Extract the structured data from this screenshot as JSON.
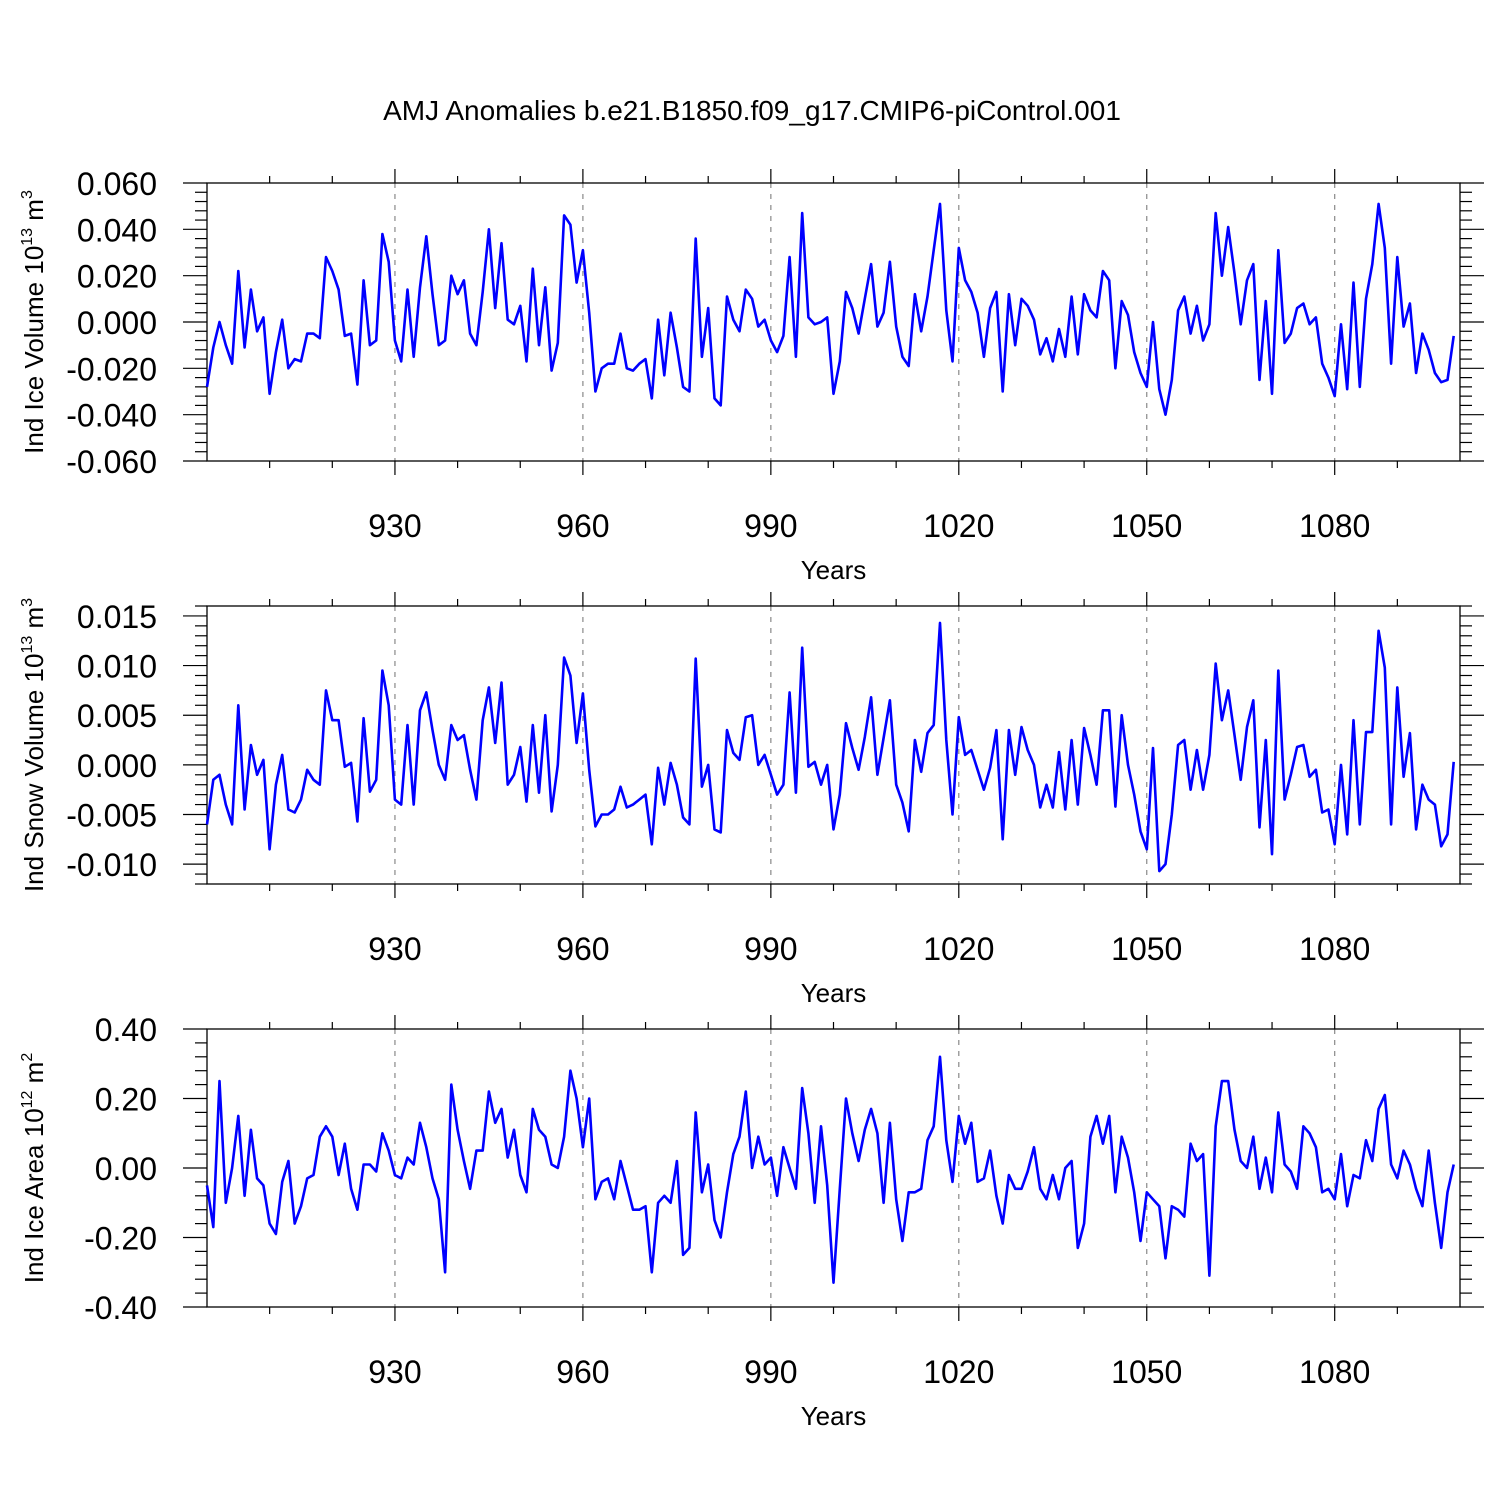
{
  "title": "AMJ Anomalies b.e21.B1850.f09_g17.CMIP6-piControl.001",
  "colors": {
    "line": "#0000ff",
    "axis": "#000000",
    "refline": "#888888"
  },
  "chart_data": [
    {
      "type": "line",
      "name": "ice-volume",
      "xlabel": "Years",
      "ylabel_prefix": "Ind Ice Volume 10",
      "ylabel_exponent": "13",
      "ylabel_unit": " m",
      "ylabel_unit_exponent": "3",
      "xlim": [
        900,
        1100
      ],
      "ylim": [
        -0.06,
        0.06
      ],
      "x_ticks": [
        930,
        960,
        990,
        1020,
        1050,
        1080
      ],
      "x_tick_labels": [
        "930",
        "960",
        "990",
        "1020",
        "1050",
        "1080"
      ],
      "y_ticks": [
        -0.06,
        -0.04,
        -0.02,
        0.0,
        0.02,
        0.04,
        0.06
      ],
      "y_tick_labels": [
        "-0.060",
        "-0.040",
        "-0.020",
        "0.000",
        "0.020",
        "0.040",
        "0.060"
      ],
      "reference_lines_x": [
        930,
        960,
        990,
        1020,
        1050,
        1080
      ],
      "x_start": 900,
      "x_step": 1,
      "values": [
        -0.028,
        -0.011,
        0.0,
        -0.01,
        -0.018,
        0.022,
        -0.011,
        0.014,
        -0.004,
        0.002,
        -0.031,
        -0.013,
        0.001,
        -0.02,
        -0.016,
        -0.017,
        -0.005,
        -0.005,
        -0.007,
        0.028,
        0.022,
        0.014,
        -0.006,
        -0.005,
        -0.027,
        0.018,
        -0.01,
        -0.008,
        0.038,
        0.026,
        -0.008,
        -0.017,
        0.014,
        -0.015,
        0.015,
        0.037,
        0.012,
        -0.01,
        -0.008,
        0.02,
        0.012,
        0.018,
        -0.005,
        -0.01,
        0.013,
        0.04,
        0.006,
        0.034,
        0.001,
        -0.001,
        0.007,
        -0.017,
        0.023,
        -0.01,
        0.015,
        -0.021,
        -0.009,
        0.046,
        0.042,
        0.017,
        0.031,
        0.004,
        -0.03,
        -0.02,
        -0.018,
        -0.018,
        -0.005,
        -0.02,
        -0.021,
        -0.018,
        -0.016,
        -0.033,
        0.001,
        -0.023,
        0.004,
        -0.011,
        -0.028,
        -0.03,
        0.036,
        -0.015,
        0.006,
        -0.033,
        -0.036,
        0.011,
        0.001,
        -0.004,
        0.014,
        0.01,
        -0.002,
        0.001,
        -0.008,
        -0.013,
        -0.006,
        0.028,
        -0.015,
        0.047,
        0.002,
        -0.001,
        0.0,
        0.002,
        -0.031,
        -0.017,
        0.013,
        0.006,
        -0.005,
        0.01,
        0.025,
        -0.002,
        0.004,
        0.026,
        -0.002,
        -0.015,
        -0.019,
        0.012,
        -0.004,
        0.011,
        0.031,
        0.051,
        0.005,
        -0.017,
        0.032,
        0.018,
        0.013,
        0.004,
        -0.015,
        0.006,
        0.013,
        -0.03,
        0.012,
        -0.01,
        0.01,
        0.007,
        0.001,
        -0.014,
        -0.007,
        -0.017,
        -0.003,
        -0.015,
        0.011,
        -0.014,
        0.012,
        0.005,
        0.002,
        0.022,
        0.018,
        -0.02,
        0.009,
        0.003,
        -0.013,
        -0.022,
        -0.028,
        0.0,
        -0.029,
        -0.04,
        -0.025,
        0.005,
        0.011,
        -0.005,
        0.007,
        -0.008,
        -0.001,
        0.047,
        0.02,
        0.041,
        0.021,
        -0.001,
        0.018,
        0.025,
        -0.025,
        0.009,
        -0.031,
        0.031,
        -0.009,
        -0.005,
        0.006,
        0.008,
        -0.001,
        0.002,
        -0.018,
        -0.024,
        -0.032,
        -0.001,
        -0.029,
        0.017,
        -0.028,
        0.01,
        0.025,
        0.051,
        0.032,
        -0.018,
        0.028,
        -0.002,
        0.008,
        -0.022,
        -0.005,
        -0.012,
        -0.022,
        -0.026,
        -0.025,
        -0.006
      ]
    },
    {
      "type": "line",
      "name": "snow-volume",
      "xlabel": "Years",
      "ylabel_prefix": "Ind Snow Volume 10",
      "ylabel_exponent": "13",
      "ylabel_unit": " m",
      "ylabel_unit_exponent": "3",
      "xlim": [
        900,
        1100
      ],
      "ylim": [
        -0.012,
        0.016
      ],
      "x_ticks": [
        930,
        960,
        990,
        1020,
        1050,
        1080
      ],
      "x_tick_labels": [
        "930",
        "960",
        "990",
        "1020",
        "1050",
        "1080"
      ],
      "y_ticks": [
        -0.01,
        -0.005,
        0.0,
        0.005,
        0.01,
        0.015
      ],
      "y_tick_labels": [
        "-0.010",
        "-0.005",
        "0.000",
        "0.005",
        "0.010",
        "0.015"
      ],
      "reference_lines_x": [
        930,
        960,
        990,
        1020,
        1050,
        1080
      ],
      "x_start": 900,
      "x_step": 1,
      "values": [
        -0.006,
        -0.0015,
        -0.001,
        -0.004,
        -0.006,
        0.006,
        -0.0045,
        0.002,
        -0.001,
        0.0005,
        -0.0085,
        -0.002,
        0.001,
        -0.0045,
        -0.0048,
        -0.0035,
        -0.0005,
        -0.0015,
        -0.002,
        0.0075,
        0.0045,
        0.0045,
        -0.0002,
        0.0002,
        -0.0057,
        0.0047,
        -0.0027,
        -0.0015,
        0.0095,
        0.006,
        -0.0035,
        -0.004,
        0.004,
        -0.004,
        0.0055,
        0.0073,
        0.0035,
        0.0,
        -0.0015,
        0.004,
        0.0025,
        0.003,
        -0.0005,
        -0.0035,
        0.0045,
        0.0078,
        0.0022,
        0.0083,
        -0.002,
        -0.001,
        0.0018,
        -0.0037,
        0.004,
        -0.0028,
        0.005,
        -0.0047,
        0.0,
        0.0108,
        0.009,
        0.0022,
        0.0072,
        -0.0005,
        -0.0062,
        -0.005,
        -0.005,
        -0.0045,
        -0.0022,
        -0.0043,
        -0.004,
        -0.0035,
        -0.003,
        -0.008,
        -0.0003,
        -0.004,
        0.0002,
        -0.002,
        -0.0053,
        -0.006,
        0.0107,
        -0.0022,
        0.0,
        -0.0065,
        -0.0068,
        0.0035,
        0.0012,
        0.0005,
        0.0048,
        0.005,
        0.0,
        0.001,
        -0.001,
        -0.003,
        -0.002,
        0.0073,
        -0.0028,
        0.0118,
        -0.0002,
        0.0003,
        -0.002,
        0.0,
        -0.0065,
        -0.003,
        0.0042,
        0.0017,
        -0.0005,
        0.0028,
        0.0068,
        -0.001,
        0.0027,
        0.0065,
        -0.002,
        -0.0038,
        -0.0067,
        0.0025,
        -0.0007,
        0.0032,
        0.004,
        0.0143,
        0.0025,
        -0.005,
        0.0048,
        0.001,
        0.0015,
        -0.0005,
        -0.0025,
        -0.0003,
        0.0035,
        -0.0075,
        0.0035,
        -0.001,
        0.0038,
        0.0015,
        0.0,
        -0.0043,
        -0.002,
        -0.0043,
        0.0013,
        -0.0045,
        0.0025,
        -0.004,
        0.0037,
        0.001,
        -0.002,
        0.0055,
        0.0055,
        -0.0042,
        0.005,
        0.0,
        -0.003,
        -0.0067,
        -0.0085,
        0.0017,
        -0.0107,
        -0.01,
        -0.005,
        0.002,
        0.0025,
        -0.0025,
        0.0015,
        -0.0025,
        0.001,
        0.0102,
        0.0045,
        0.0075,
        0.003,
        -0.0015,
        0.0038,
        0.0065,
        -0.0063,
        0.0025,
        -0.009,
        0.0095,
        -0.0035,
        -0.001,
        0.0018,
        0.002,
        -0.0012,
        -0.0005,
        -0.0048,
        -0.0045,
        -0.008,
        0.0,
        -0.007,
        0.0045,
        -0.006,
        0.0033,
        0.0033,
        0.0135,
        0.0098,
        -0.006,
        0.0078,
        -0.0012,
        0.0032,
        -0.0065,
        -0.002,
        -0.0035,
        -0.004,
        -0.0082,
        -0.007,
        0.0003
      ]
    },
    {
      "type": "line",
      "name": "ice-area",
      "xlabel": "Years",
      "ylabel_prefix": "Ind Ice Area 10",
      "ylabel_exponent": "12",
      "ylabel_unit": " m",
      "ylabel_unit_exponent": "2",
      "xlim": [
        900,
        1100
      ],
      "ylim": [
        -0.4,
        0.4
      ],
      "x_ticks": [
        930,
        960,
        990,
        1020,
        1050,
        1080
      ],
      "x_tick_labels": [
        "930",
        "960",
        "990",
        "1020",
        "1050",
        "1080"
      ],
      "y_ticks": [
        -0.4,
        -0.2,
        0.0,
        0.2,
        0.4
      ],
      "y_tick_labels": [
        "-0.40",
        "-0.20",
        "0.00",
        "0.20",
        "0.40"
      ],
      "reference_lines_x": [
        930,
        960,
        990,
        1020,
        1050,
        1080
      ],
      "x_start": 900,
      "x_step": 1,
      "values": [
        -0.05,
        -0.17,
        0.25,
        -0.1,
        0.0,
        0.15,
        -0.08,
        0.11,
        -0.03,
        -0.05,
        -0.16,
        -0.19,
        -0.04,
        0.02,
        -0.16,
        -0.11,
        -0.03,
        -0.02,
        0.09,
        0.12,
        0.09,
        -0.02,
        0.07,
        -0.06,
        -0.12,
        0.01,
        0.01,
        -0.01,
        0.1,
        0.05,
        -0.02,
        -0.03,
        0.03,
        0.01,
        0.13,
        0.06,
        -0.03,
        -0.09,
        -0.3,
        0.24,
        0.11,
        0.02,
        -0.06,
        0.05,
        0.05,
        0.22,
        0.13,
        0.17,
        0.03,
        0.11,
        -0.02,
        -0.07,
        0.17,
        0.11,
        0.09,
        0.01,
        0.0,
        0.09,
        0.28,
        0.2,
        0.06,
        0.2,
        -0.09,
        -0.04,
        -0.03,
        -0.09,
        0.02,
        -0.05,
        -0.12,
        -0.12,
        -0.11,
        -0.3,
        -0.1,
        -0.08,
        -0.1,
        0.02,
        -0.25,
        -0.23,
        0.16,
        -0.07,
        0.01,
        -0.15,
        -0.2,
        -0.07,
        0.04,
        0.09,
        0.22,
        0.0,
        0.09,
        0.01,
        0.03,
        -0.08,
        0.06,
        0.0,
        -0.06,
        0.23,
        0.1,
        -0.1,
        0.12,
        -0.05,
        -0.33,
        -0.06,
        0.2,
        0.1,
        0.02,
        0.11,
        0.17,
        0.1,
        -0.1,
        0.13,
        -0.09,
        -0.21,
        -0.07,
        -0.07,
        -0.06,
        0.08,
        0.12,
        0.32,
        0.08,
        -0.04,
        0.15,
        0.07,
        0.13,
        -0.04,
        -0.03,
        0.05,
        -0.08,
        -0.16,
        -0.02,
        -0.06,
        -0.06,
        -0.01,
        0.06,
        -0.06,
        -0.09,
        -0.02,
        -0.09,
        0.0,
        0.02,
        -0.23,
        -0.16,
        0.09,
        0.15,
        0.07,
        0.15,
        -0.07,
        0.09,
        0.03,
        -0.07,
        -0.21,
        -0.07,
        -0.09,
        -0.11,
        -0.26,
        -0.11,
        -0.12,
        -0.14,
        0.07,
        0.02,
        0.04,
        -0.31,
        0.12,
        0.25,
        0.25,
        0.11,
        0.02,
        0.0,
        0.09,
        -0.06,
        0.03,
        -0.07,
        0.16,
        0.01,
        -0.01,
        -0.06,
        0.12,
        0.1,
        0.06,
        -0.07,
        -0.06,
        -0.09,
        0.04,
        -0.11,
        -0.02,
        -0.03,
        0.08,
        0.02,
        0.17,
        0.21,
        0.01,
        -0.03,
        0.05,
        0.01,
        -0.06,
        -0.11,
        0.05,
        -0.1,
        -0.23,
        -0.07,
        0.01
      ]
    }
  ]
}
